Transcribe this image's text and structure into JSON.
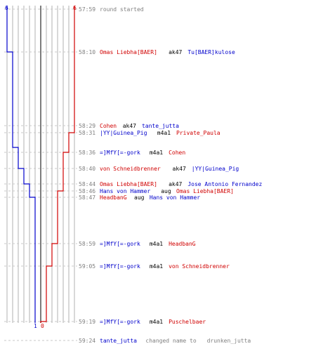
{
  "colors": {
    "red_team": "#d00000",
    "blue_team": "#0000cc",
    "gray_text": "#808080",
    "grid": "#b0b0b0",
    "dark_line": "#505050"
  },
  "score": {
    "blue_start": "6",
    "red_start": "6",
    "blue_end": "1",
    "red_end": "0"
  },
  "events": [
    {
      "time": "57:59",
      "type": "status",
      "text": "round started"
    },
    {
      "time": "58:10",
      "type": "kill",
      "killer": "Omas Liebha[BAER]",
      "killer_team": "red",
      "weapon": "ak47",
      "victim": "Tu[BAER]kulose",
      "victim_team": "blue"
    },
    {
      "time": "58:29",
      "type": "kill",
      "killer": "Cohen",
      "killer_team": "red",
      "weapon": "ak47",
      "victim": "tante_jutta",
      "victim_team": "blue"
    },
    {
      "time": "58:31",
      "type": "kill",
      "killer": "|YY|Guinea_Pig",
      "killer_team": "blue",
      "weapon": "m4a1",
      "victim": "Private_Paula",
      "victim_team": "red"
    },
    {
      "time": "58:36",
      "type": "kill",
      "killer": "=]MfY[=-gork",
      "killer_team": "blue",
      "weapon": "m4a1",
      "victim": "Cohen",
      "victim_team": "red"
    },
    {
      "time": "58:40",
      "type": "kill",
      "killer": "von Schneidbrenner",
      "killer_team": "red",
      "weapon": "ak47",
      "victim": "|YY|Guinea_Pig",
      "victim_team": "blue"
    },
    {
      "time": "58:44",
      "type": "kill",
      "killer": "Omas Liebha[BAER]",
      "killer_team": "red",
      "weapon": "ak47",
      "victim": "Jose Antonio Fernandez",
      "victim_team": "blue"
    },
    {
      "time": "58:46",
      "type": "kill",
      "killer": "Hans von Hammer",
      "killer_team": "blue",
      "weapon": "aug",
      "victim": "Omas Liebha[BAER]",
      "victim_team": "red"
    },
    {
      "time": "58:47",
      "type": "kill",
      "killer": "HeadbanG",
      "killer_team": "red",
      "weapon": "aug",
      "victim": "Hans von Hammer",
      "victim_team": "blue"
    },
    {
      "time": "58:59",
      "type": "kill",
      "killer": "=]MfY[=-gork",
      "killer_team": "blue",
      "weapon": "m4a1",
      "victim": "HeadbanG",
      "victim_team": "red"
    },
    {
      "time": "59:05",
      "type": "kill",
      "killer": "=]MfY[=-gork",
      "killer_team": "blue",
      "weapon": "m4a1",
      "victim": "von Schneidbrenner",
      "victim_team": "red"
    },
    {
      "time": "59:19",
      "type": "kill",
      "killer": "=]MfY[=-gork",
      "killer_team": "blue",
      "weapon": "m4a1",
      "victim": "Puschelbaer",
      "victim_team": "red"
    },
    {
      "time": "59:24",
      "type": "rename",
      "player": "tante_jutta",
      "player_team": "blue",
      "action": "changed name to",
      "new_name": "drunken_jutta"
    }
  ]
}
